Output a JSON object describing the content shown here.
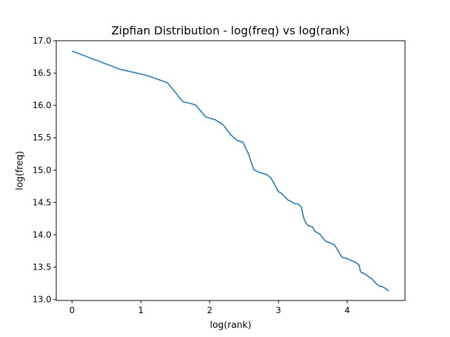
{
  "chart_data": {
    "type": "line",
    "title": "Zipfian Distribution - log(freq) vs log(rank)",
    "xlabel": "log(rank)",
    "ylabel": "log(freq)",
    "xlim": [
      -0.23,
      4.84
    ],
    "ylim": [
      12.985,
      17.0
    ],
    "grid": false,
    "x_ticks": [
      0,
      1,
      2,
      3,
      4
    ],
    "x_tick_labels": [
      "0",
      "1",
      "2",
      "3",
      "4"
    ],
    "y_ticks": [
      13.0,
      13.5,
      14.0,
      14.5,
      15.0,
      15.5,
      16.0,
      16.5,
      17.0
    ],
    "y_tick_labels": [
      "13.0",
      "13.5",
      "14.0",
      "14.5",
      "15.0",
      "15.5",
      "16.0",
      "16.5",
      "17.0"
    ],
    "line_color": "#1f77b4",
    "series": [
      {
        "x": [
          0.0,
          0.693,
          1.099,
          1.386,
          1.609,
          1.792,
          1.946,
          2.079,
          2.197,
          2.303,
          2.398,
          2.485,
          2.565,
          2.639,
          2.708,
          2.773,
          2.833,
          2.89,
          2.944,
          2.996,
          3.045,
          3.091,
          3.135,
          3.178,
          3.219,
          3.258,
          3.296,
          3.332,
          3.367,
          3.401,
          3.434,
          3.466,
          3.497,
          3.526,
          3.555,
          3.584,
          3.611,
          3.638,
          3.664,
          3.689,
          3.714,
          3.738,
          3.761,
          3.784,
          3.807,
          3.829,
          3.85,
          3.871,
          3.892,
          3.912,
          3.932,
          3.951,
          3.97,
          3.989,
          4.007,
          4.025,
          4.043,
          4.06,
          4.078,
          4.094,
          4.111,
          4.127,
          4.143,
          4.159,
          4.174,
          4.19,
          4.205,
          4.22,
          4.234,
          4.248,
          4.263,
          4.277,
          4.29,
          4.304,
          4.317,
          4.331,
          4.344,
          4.357,
          4.369,
          4.382,
          4.394,
          4.407,
          4.419,
          4.431,
          4.443,
          4.454,
          4.466,
          4.477,
          4.489,
          4.5,
          4.511,
          4.522,
          4.533,
          4.543,
          4.554,
          4.564,
          4.575,
          4.585,
          4.595,
          4.605
        ],
        "y": [
          16.84,
          16.56,
          16.46,
          16.35,
          16.06,
          16.01,
          15.82,
          15.78,
          15.7,
          15.55,
          15.46,
          15.43,
          15.25,
          15.01,
          14.97,
          14.95,
          14.93,
          14.88,
          14.78,
          14.67,
          14.64,
          14.59,
          14.54,
          14.52,
          14.49,
          14.48,
          14.47,
          14.43,
          14.26,
          14.18,
          14.14,
          14.13,
          14.12,
          14.06,
          14.04,
          14.02,
          14.0,
          13.96,
          13.93,
          13.9,
          13.89,
          13.88,
          13.87,
          13.86,
          13.85,
          13.82,
          13.79,
          13.75,
          13.71,
          13.67,
          13.65,
          13.645,
          13.64,
          13.635,
          13.63,
          13.62,
          13.61,
          13.6,
          13.595,
          13.59,
          13.58,
          13.57,
          13.56,
          13.54,
          13.53,
          13.44,
          13.42,
          13.41,
          13.41,
          13.4,
          13.39,
          13.38,
          13.37,
          13.36,
          13.35,
          13.34,
          13.33,
          13.32,
          13.31,
          13.29,
          13.27,
          13.26,
          13.25,
          13.24,
          13.23,
          13.22,
          13.21,
          13.205,
          13.2,
          13.205,
          13.2,
          13.19,
          13.185,
          13.18,
          13.17,
          13.16,
          13.155,
          13.15,
          13.14,
          13.13
        ]
      }
    ]
  }
}
